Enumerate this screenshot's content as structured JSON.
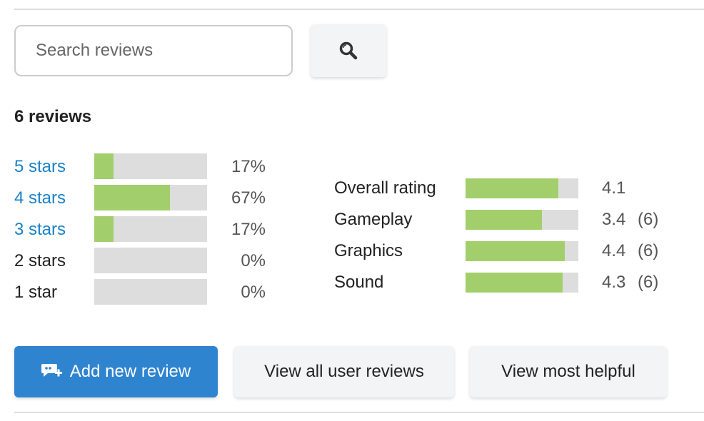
{
  "search": {
    "placeholder": "Search reviews",
    "button_icon": "search-icon"
  },
  "summary": {
    "count_label": "6 reviews"
  },
  "star_breakdown": [
    {
      "label": "5 stars",
      "percent_label": "17%",
      "percent": 17,
      "link": true
    },
    {
      "label": "4 stars",
      "percent_label": "67%",
      "percent": 67,
      "link": true
    },
    {
      "label": "3 stars",
      "percent_label": "17%",
      "percent": 17,
      "link": true
    },
    {
      "label": "2 stars",
      "percent_label": "0%",
      "percent": 0,
      "link": false
    },
    {
      "label": "1 star",
      "percent_label": "0%",
      "percent": 0,
      "link": false
    }
  ],
  "ratings": [
    {
      "label": "Overall rating",
      "value": "4.1",
      "count": ""
    },
    {
      "label": "Gameplay",
      "value": "3.4",
      "count": "(6)"
    },
    {
      "label": "Graphics",
      "value": "4.4",
      "count": "(6)"
    },
    {
      "label": "Sound",
      "value": "4.3",
      "count": "(6)"
    }
  ],
  "rating_max": 5,
  "actions": {
    "add": "Add new review",
    "view_all": "View all user reviews",
    "most_helpful": "View most helpful"
  },
  "colors": {
    "accent": "#2f84d0",
    "link": "#1a82c8",
    "bar_fill": "#a2cf6b",
    "bar_track": "#dddddd"
  }
}
